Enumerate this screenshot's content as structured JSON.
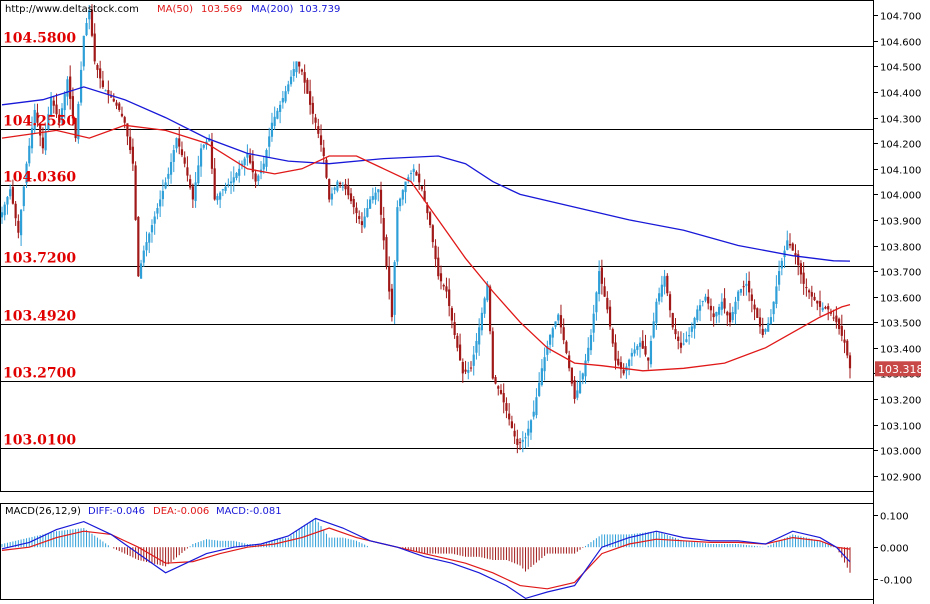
{
  "header": {
    "url": "http://www.deltastock.com",
    "ma50_label": "MA(50)",
    "ma50_value": "103.569",
    "ma200_label": "MA(200)",
    "ma200_value": "103.739"
  },
  "macd_header": {
    "title": "MACD(26,12,9)",
    "diff": "DIFF:-0.046",
    "dea": "DEA:-0.006",
    "macd": "MACD:-0.081"
  },
  "colors": {
    "bull": "#2f9fd8",
    "bear": "#a01818",
    "ma50": "#e01818",
    "ma200": "#1818d8",
    "level_text": "#e00000",
    "price_tag_bg": "#c84848"
  },
  "chart_data": [
    {
      "type": "candlestick",
      "title": "",
      "ylim": [
        102.84,
        104.76
      ],
      "y_ticks": [
        "104.700",
        "104.600",
        "104.500",
        "104.400",
        "104.300",
        "104.200",
        "104.100",
        "104.000",
        "103.900",
        "103.800",
        "103.700",
        "103.600",
        "103.500",
        "103.400",
        "103.300",
        "103.200",
        "103.100",
        "103.000",
        "102.900"
      ],
      "y_tick_values": [
        104.7,
        104.6,
        104.5,
        104.4,
        104.3,
        104.2,
        104.1,
        104.0,
        103.9,
        103.8,
        103.7,
        103.6,
        103.5,
        103.4,
        103.3,
        103.2,
        103.1,
        103.0,
        102.9
      ],
      "levels": [
        {
          "label": "104.5800",
          "value": 104.58
        },
        {
          "label": "104.2550",
          "value": 104.255
        },
        {
          "label": "104.0360",
          "value": 104.036
        },
        {
          "label": "103.7200",
          "value": 103.72
        },
        {
          "label": "103.4920",
          "value": 103.492
        },
        {
          "label": "103.2700",
          "value": 103.27
        },
        {
          "label": "103.0100",
          "value": 103.01
        }
      ],
      "last_price": "103.318",
      "last_price_value": 103.318,
      "price_path": [
        [
          0,
          103.93
        ],
        [
          3,
          104.02
        ],
        [
          6,
          103.85
        ],
        [
          9,
          104.12
        ],
        [
          12,
          104.33
        ],
        [
          15,
          104.18
        ],
        [
          18,
          104.38
        ],
        [
          21,
          104.28
        ],
        [
          24,
          104.45
        ],
        [
          27,
          104.22
        ],
        [
          30,
          104.62
        ],
        [
          32,
          104.72
        ],
        [
          34,
          104.52
        ],
        [
          37,
          104.42
        ],
        [
          40,
          104.38
        ],
        [
          43,
          104.33
        ],
        [
          45,
          104.28
        ],
        [
          48,
          104.12
        ],
        [
          50,
          103.68
        ],
        [
          52,
          103.78
        ],
        [
          55,
          103.88
        ],
        [
          58,
          103.98
        ],
        [
          61,
          104.08
        ],
        [
          64,
          104.22
        ],
        [
          67,
          104.12
        ],
        [
          70,
          103.98
        ],
        [
          73,
          104.18
        ],
        [
          76,
          104.22
        ],
        [
          78,
          103.98
        ],
        [
          81,
          104.02
        ],
        [
          84,
          104.05
        ],
        [
          87,
          104.1
        ],
        [
          90,
          104.16
        ],
        [
          93,
          104.05
        ],
        [
          96,
          104.12
        ],
        [
          99,
          104.28
        ],
        [
          102,
          104.35
        ],
        [
          105,
          104.43
        ],
        [
          108,
          104.52
        ],
        [
          110,
          104.48
        ],
        [
          113,
          104.35
        ],
        [
          115,
          104.28
        ],
        [
          118,
          104.15
        ],
        [
          120,
          103.98
        ],
        [
          123,
          104.05
        ],
        [
          126,
          104.02
        ],
        [
          129,
          103.95
        ],
        [
          132,
          103.88
        ],
        [
          135,
          103.98
        ],
        [
          138,
          104.02
        ],
        [
          141,
          103.72
        ],
        [
          143,
          103.52
        ],
        [
          145,
          103.95
        ],
        [
          148,
          104.05
        ],
        [
          151,
          104.1
        ],
        [
          154,
          104.02
        ],
        [
          157,
          103.88
        ],
        [
          160,
          103.68
        ],
        [
          163,
          103.62
        ],
        [
          166,
          103.45
        ],
        [
          169,
          103.3
        ],
        [
          172,
          103.32
        ],
        [
          175,
          103.48
        ],
        [
          178,
          103.65
        ],
        [
          180,
          103.28
        ],
        [
          183,
          103.22
        ],
        [
          186,
          103.12
        ],
        [
          189,
          103.02
        ],
        [
          192,
          103.05
        ],
        [
          195,
          103.15
        ],
        [
          198,
          103.32
        ],
        [
          201,
          103.45
        ],
        [
          204,
          103.53
        ],
        [
          207,
          103.38
        ],
        [
          210,
          103.2
        ],
        [
          213,
          103.3
        ],
        [
          216,
          103.45
        ],
        [
          219,
          103.7
        ],
        [
          222,
          103.55
        ],
        [
          225,
          103.35
        ],
        [
          228,
          103.3
        ],
        [
          231,
          103.38
        ],
        [
          234,
          103.42
        ],
        [
          237,
          103.35
        ],
        [
          240,
          103.58
        ],
        [
          243,
          103.68
        ],
        [
          246,
          103.48
        ],
        [
          249,
          103.4
        ],
        [
          252,
          103.45
        ],
        [
          255,
          103.55
        ],
        [
          258,
          103.6
        ],
        [
          261,
          103.52
        ],
        [
          264,
          103.58
        ],
        [
          267,
          103.5
        ],
        [
          270,
          103.62
        ],
        [
          273,
          103.65
        ],
        [
          276,
          103.55
        ],
        [
          279,
          103.45
        ],
        [
          282,
          103.52
        ],
        [
          285,
          103.7
        ],
        [
          288,
          103.82
        ],
        [
          291,
          103.76
        ],
        [
          294,
          103.65
        ],
        [
          297,
          103.6
        ],
        [
          300,
          103.56
        ],
        [
          303,
          103.55
        ],
        [
          306,
          103.5
        ],
        [
          309,
          103.42
        ],
        [
          311,
          103.32
        ]
      ],
      "ma50_path": [
        [
          0,
          104.22
        ],
        [
          20,
          104.25
        ],
        [
          32,
          104.22
        ],
        [
          45,
          104.27
        ],
        [
          60,
          104.25
        ],
        [
          75,
          104.2
        ],
        [
          90,
          104.1
        ],
        [
          100,
          104.08
        ],
        [
          110,
          104.1
        ],
        [
          120,
          104.15
        ],
        [
          130,
          104.15
        ],
        [
          140,
          104.1
        ],
        [
          150,
          104.05
        ],
        [
          160,
          103.9
        ],
        [
          170,
          103.75
        ],
        [
          180,
          103.62
        ],
        [
          190,
          103.5
        ],
        [
          200,
          103.4
        ],
        [
          210,
          103.34
        ],
        [
          220,
          103.33
        ],
        [
          235,
          103.31
        ],
        [
          250,
          103.32
        ],
        [
          265,
          103.34
        ],
        [
          280,
          103.4
        ],
        [
          290,
          103.46
        ],
        [
          300,
          103.52
        ],
        [
          308,
          103.56
        ],
        [
          311,
          103.569
        ]
      ],
      "ma200_path": [
        [
          0,
          104.35
        ],
        [
          15,
          104.37
        ],
        [
          30,
          104.42
        ],
        [
          45,
          104.37
        ],
        [
          60,
          104.3
        ],
        [
          75,
          104.22
        ],
        [
          90,
          104.16
        ],
        [
          105,
          104.13
        ],
        [
          120,
          104.12
        ],
        [
          140,
          104.14
        ],
        [
          160,
          104.15
        ],
        [
          170,
          104.12
        ],
        [
          180,
          104.05
        ],
        [
          190,
          104.0
        ],
        [
          210,
          103.95
        ],
        [
          230,
          103.9
        ],
        [
          250,
          103.86
        ],
        [
          270,
          103.8
        ],
        [
          290,
          103.76
        ],
        [
          305,
          103.74
        ],
        [
          311,
          103.739
        ]
      ]
    },
    {
      "type": "bar",
      "title": "MACD(26,12,9)",
      "ylim": [
        -0.165,
        0.135
      ],
      "y_ticks": [
        "0.100",
        "0.000",
        "-0.100"
      ],
      "y_tick_values": [
        0.1,
        0.0,
        -0.1
      ],
      "diff_path": [
        [
          0,
          -0.005
        ],
        [
          10,
          0.015
        ],
        [
          20,
          0.055
        ],
        [
          30,
          0.08
        ],
        [
          40,
          0.04
        ],
        [
          50,
          -0.02
        ],
        [
          60,
          -0.08
        ],
        [
          65,
          -0.06
        ],
        [
          75,
          -0.02
        ],
        [
          85,
          0.0
        ],
        [
          95,
          0.01
        ],
        [
          105,
          0.035
        ],
        [
          115,
          0.09
        ],
        [
          125,
          0.06
        ],
        [
          135,
          0.02
        ],
        [
          145,
          0.0
        ],
        [
          155,
          -0.03
        ],
        [
          165,
          -0.05
        ],
        [
          175,
          -0.08
        ],
        [
          185,
          -0.12
        ],
        [
          192,
          -0.16
        ],
        [
          200,
          -0.14
        ],
        [
          210,
          -0.12
        ],
        [
          220,
          0.0
        ],
        [
          230,
          0.03
        ],
        [
          240,
          0.05
        ],
        [
          250,
          0.03
        ],
        [
          260,
          0.02
        ],
        [
          270,
          0.02
        ],
        [
          280,
          0.01
        ],
        [
          290,
          0.05
        ],
        [
          300,
          0.03
        ],
        [
          306,
          0.0
        ],
        [
          311,
          -0.046
        ]
      ],
      "dea_path": [
        [
          0,
          -0.01
        ],
        [
          10,
          0.0
        ],
        [
          20,
          0.03
        ],
        [
          30,
          0.05
        ],
        [
          40,
          0.04
        ],
        [
          50,
          0.0
        ],
        [
          60,
          -0.05
        ],
        [
          70,
          -0.045
        ],
        [
          80,
          -0.02
        ],
        [
          90,
          0.0
        ],
        [
          100,
          0.01
        ],
        [
          110,
          0.03
        ],
        [
          120,
          0.06
        ],
        [
          130,
          0.03
        ],
        [
          140,
          0.01
        ],
        [
          150,
          -0.01
        ],
        [
          160,
          -0.03
        ],
        [
          170,
          -0.05
        ],
        [
          180,
          -0.08
        ],
        [
          190,
          -0.12
        ],
        [
          200,
          -0.13
        ],
        [
          210,
          -0.11
        ],
        [
          220,
          -0.02
        ],
        [
          230,
          0.01
        ],
        [
          240,
          0.025
        ],
        [
          250,
          0.02
        ],
        [
          260,
          0.015
        ],
        [
          270,
          0.015
        ],
        [
          280,
          0.01
        ],
        [
          290,
          0.03
        ],
        [
          300,
          0.02
        ],
        [
          306,
          0.0
        ],
        [
          311,
          -0.006
        ]
      ]
    }
  ]
}
